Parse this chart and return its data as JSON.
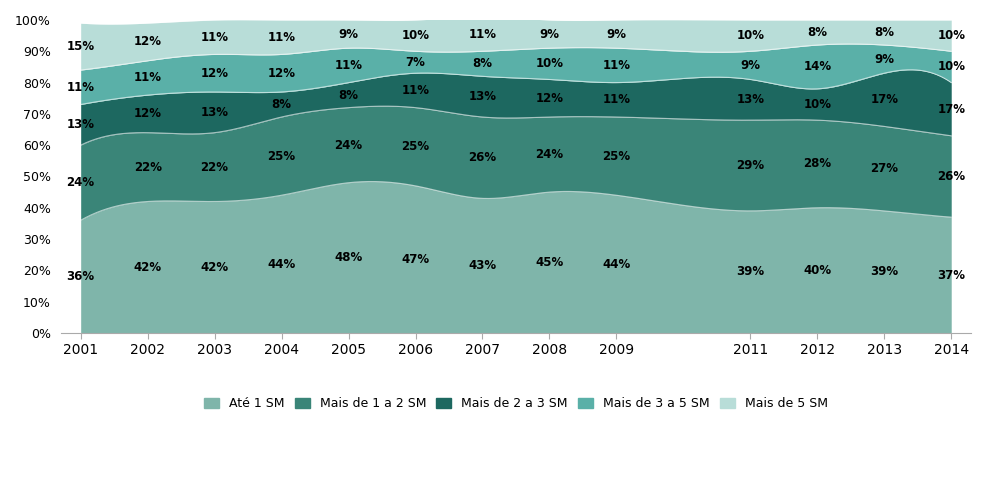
{
  "years": [
    2001,
    2002,
    2003,
    2004,
    2005,
    2006,
    2007,
    2008,
    2009,
    2011,
    2012,
    2013,
    2014
  ],
  "series": {
    "Até 1 SM": [
      36,
      42,
      42,
      44,
      48,
      47,
      43,
      45,
      44,
      39,
      40,
      39,
      37
    ],
    "Mais de 1 a 2 SM": [
      24,
      22,
      22,
      25,
      24,
      25,
      26,
      24,
      25,
      29,
      28,
      27,
      26
    ],
    "Mais de 2 a 3 SM": [
      13,
      12,
      13,
      8,
      8,
      11,
      13,
      12,
      11,
      13,
      10,
      17,
      17
    ],
    "Mais de 3 a 5 SM": [
      11,
      11,
      12,
      12,
      11,
      7,
      8,
      10,
      11,
      9,
      14,
      9,
      10
    ],
    "Mais de 5 SM": [
      15,
      12,
      11,
      11,
      9,
      10,
      11,
      9,
      9,
      10,
      8,
      8,
      10
    ]
  },
  "colors": {
    "Até 1 SM": "#7fb5aa",
    "Mais de 1 a 2 SM": "#3a8578",
    "Mais de 2 a 3 SM": "#1d6860",
    "Mais de 3 a 5 SM": "#5ab0a8",
    "Mais de 5 SM": "#b8ddd8"
  },
  "legend_order": [
    "Até 1 SM",
    "Mais de 1 a 2 SM",
    "Mais de 2 a 3 SM",
    "Mais de 3 a 5 SM",
    "Mais de 5 SM"
  ],
  "yticks": [
    0,
    10,
    20,
    30,
    40,
    50,
    60,
    70,
    80,
    90,
    100
  ],
  "background_color": "#ffffff"
}
